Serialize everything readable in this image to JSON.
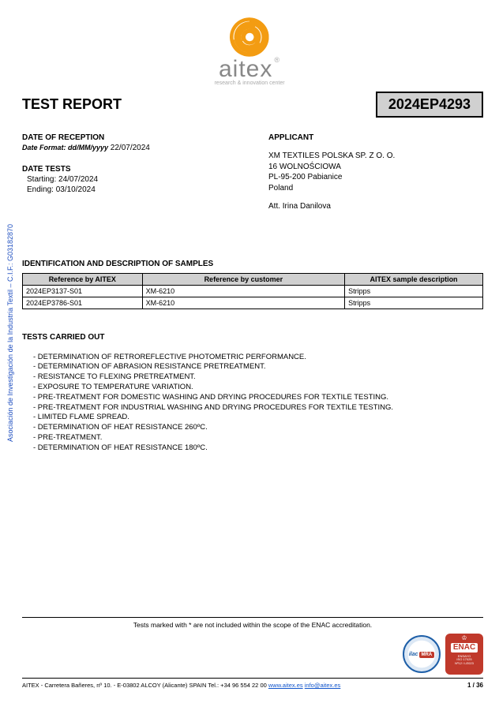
{
  "side_text": "Asociación de Investigación de la Industria Textil – C.I.F.: G03182870",
  "logo": {
    "main": "aitex",
    "reg": "®",
    "sub": "research & innovation center",
    "spiral_color": "#f39c12"
  },
  "title": "TEST REPORT",
  "report_number": "2024EP4293",
  "reception": {
    "heading": "DATE OF RECEPTION",
    "format_label": "Date Format: dd/MM/yyyy",
    "date": " 22/07/2024"
  },
  "date_tests": {
    "heading": "DATE TESTS",
    "start_label": "Starting: ",
    "start": "24/07/2024",
    "end_label": "Ending: ",
    "end": "03/10/2024"
  },
  "applicant": {
    "heading": "APPLICANT",
    "line1": "XM TEXTILES POLSKA SP. Z O. O.",
    "line2": "16 WOLNOŚCIOWA",
    "line3": "PL-95-200 Pabianice",
    "line4": "Poland",
    "line5": "Att. Irina Danilova"
  },
  "samples": {
    "heading": "IDENTIFICATION AND DESCRIPTION OF SAMPLES",
    "columns": [
      "Reference by AITEX",
      "Reference by customer",
      "AITEX sample description"
    ],
    "rows": [
      [
        "2024EP3137-S01",
        "XM-6210",
        "Stripps"
      ],
      [
        "2024EP3786-S01",
        "XM-6210",
        "Stripps"
      ]
    ],
    "col_widths": [
      "26%",
      "44%",
      "30%"
    ]
  },
  "tests": {
    "heading": "TESTS CARRIED OUT",
    "items": [
      "- DETERMINATION OF RETROREFLECTIVE PHOTOMETRIC PERFORMANCE.",
      "- DETERMINATION OF ABRASION RESISTANCE PRETREATMENT.",
      "- RESISTANCE TO FLEXING PRETREATMENT.",
      "- EXPOSURE TO TEMPERATURE VARIATION.",
      "- PRE-TREATMENT FOR DOMESTIC WASHING AND DRYING PROCEDURES FOR TEXTILE TESTING.",
      "- PRE-TREATMENT FOR INDUSTRIAL WASHING AND DRYING PROCEDURES FOR TEXTILE TESTING.",
      "- LIMITED FLAME SPREAD.",
      "- DETERMINATION OF HEAT RESISTANCE 260ºC.",
      "- PRE-TREATMENT.",
      "- DETERMINATION OF HEAT RESISTANCE 180ºC."
    ]
  },
  "footer": {
    "accred_note": "Tests marked with * are not included within the scope of the ENAC accreditation.",
    "ilac_text": "ilac",
    "ilac_mra": "MRA",
    "enac_label": "ENAC",
    "enac_sub1": "ENSAYO",
    "enac_sub2": "ISO 17025",
    "enac_sub3": "Nº12 / LE023",
    "address_prefix": "AITEX - Carretera Bañeres, nº 10. - E-03802 ALCOY (Alicante) SPAIN Tel.: +34 96 554 22 00 ",
    "link1": "www.aitex.es",
    "space": " ",
    "link2": "info@aitex.es",
    "page": "1 / 36"
  }
}
